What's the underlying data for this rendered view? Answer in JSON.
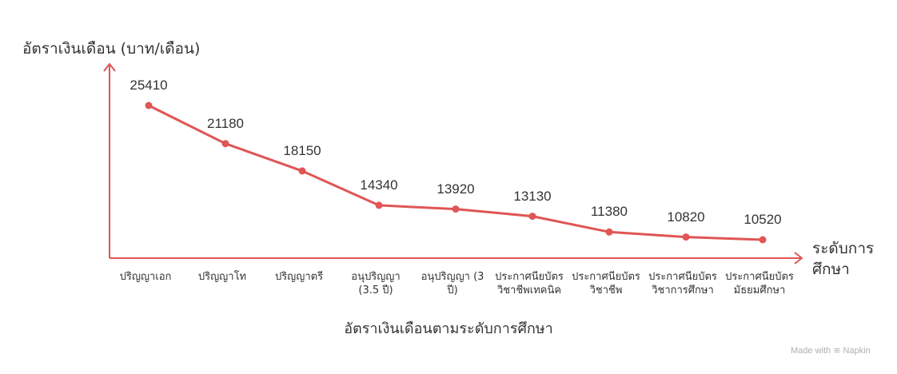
{
  "chart_data": {
    "type": "line",
    "title": "อัตราเงินเดือนตามระดับการศึกษา",
    "ylabel": "อัตราเงินเดือน (บาท/เดือน)",
    "xlabel": "ระดับการศึกษา",
    "categories": [
      "ปริญญาเอก",
      "ปริญญาโท",
      "ปริญญาตรี",
      "อนุปริญญา (3.5 ปี)",
      "อนุปริญญา (3 ปี)",
      "ประกาศนียบัตรวิชาชีพเทคนิค",
      "ประกาศนียบัตรวิชาชีพ",
      "ประกาศนียบัตรวิชาการศึกษา",
      "ประกาศนียบัตรมัธยมศึกษา"
    ],
    "category_lines": [
      [
        "ปริญญาเอก"
      ],
      [
        "ปริญญาโท"
      ],
      [
        "ปริญญาตรี"
      ],
      [
        "อนุปริญญา",
        "(3.5 ปี)"
      ],
      [
        "อนุปริญญา (3",
        "ปี)"
      ],
      [
        "ประกาศนียบัตร",
        "วิชาชีพเทคนิค"
      ],
      [
        "ประกาศนียบัตร",
        "วิชาชีพ"
      ],
      [
        "ประกาศนียบัตร",
        "วิชาการศึกษา"
      ],
      [
        "ประกาศนียบัตร",
        "มัธยมศึกษา"
      ]
    ],
    "values": [
      25410,
      21180,
      18150,
      14340,
      13920,
      13130,
      11380,
      10820,
      10520
    ],
    "color": "#e05555",
    "grid": false,
    "legend": "none"
  },
  "watermark": "Made with ≋ Napkin"
}
